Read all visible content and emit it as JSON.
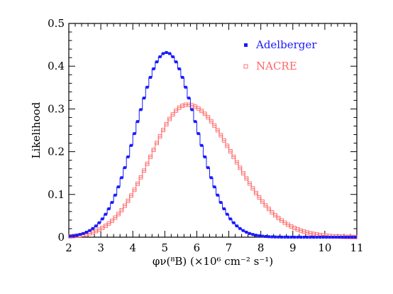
{
  "chart_data": {
    "type": "line",
    "title": "",
    "xlabel": "φν(⁸B) (×10⁶ cm⁻² s⁻¹)",
    "ylabel": "Likelihood",
    "xlim": [
      2,
      11
    ],
    "ylim": [
      0,
      0.5
    ],
    "xticks": [
      "2",
      "3",
      "4",
      "5",
      "6",
      "7",
      "8",
      "9",
      "10",
      "11"
    ],
    "yticks": [
      "0",
      "0.1",
      "0.2",
      "0.3",
      "0.4",
      "0.5"
    ],
    "grid": false,
    "legend": "top-right",
    "series": [
      {
        "name": "Adelberger",
        "color": "#1a1aff",
        "marker": "filled-square",
        "mean": 5.05,
        "sigma": 0.93,
        "peak": 0.432
      },
      {
        "name": "NACRE",
        "color": "#ff6666",
        "marker": "open-square",
        "mode": 5.7,
        "sigma_left": 1.15,
        "sigma_right": 1.45,
        "peak": 0.31
      }
    ]
  }
}
